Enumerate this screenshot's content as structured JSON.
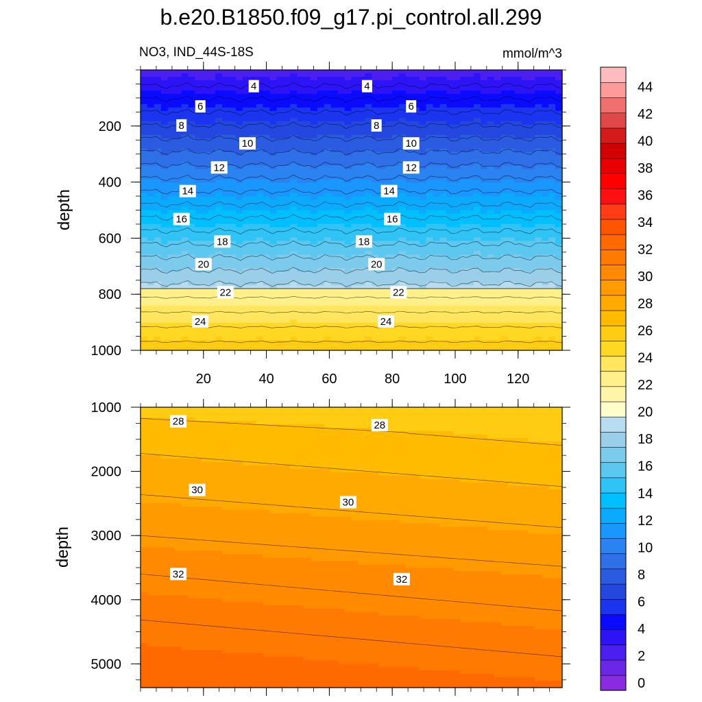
{
  "chart_data": {
    "type": "heatmap",
    "title": "b.e20.B1850.f09_g17.pi_control.all.299",
    "subtitle_left": "NO3, IND_44S-18S",
    "subtitle_right": "mmol/m^3",
    "ylabel": "depth",
    "colorbar": {
      "levels": [
        0,
        2,
        4,
        6,
        8,
        10,
        12,
        14,
        16,
        18,
        20,
        22,
        24,
        26,
        28,
        30,
        32,
        34,
        36,
        38,
        40,
        42,
        44
      ],
      "label_values": [
        "0",
        "2",
        "4",
        "6",
        "8",
        "10",
        "12",
        "14",
        "16",
        "18",
        "20",
        "22",
        "24",
        "26",
        "28",
        "30",
        "32",
        "34",
        "36",
        "38",
        "40",
        "42",
        "44"
      ],
      "colors": [
        "#8a2be2",
        "#6a28e6",
        "#4b1ff0",
        "#2d14f6",
        "#0a0aff",
        "#1b34f0",
        "#2447e0",
        "#2b5be0",
        "#2f6fe8",
        "#2a83f0",
        "#1a96ff",
        "#0aabff",
        "#00bfff",
        "#30c4f6",
        "#5cc8f0",
        "#7ccbec",
        "#9bcfe9",
        "#b8ddf0",
        "#fffccc",
        "#fff5a8",
        "#fff08a",
        "#ffe65e",
        "#ffd824",
        "#ffcc14",
        "#ffbb00",
        "#ffaa00",
        "#ff9a00",
        "#ff8a00",
        "#ff7a00",
        "#ff6a00",
        "#ff5500",
        "#ff3c14",
        "#ff1010",
        "#ff0000",
        "#e80000",
        "#d20000",
        "#d41a1a",
        "#e04848",
        "#f07070",
        "#ff9a9a",
        "#ffbcbc"
      ]
    },
    "panels": [
      {
        "name": "upper",
        "ylim": [
          1000,
          0
        ],
        "xlim": [
          0,
          134
        ],
        "xticks": [
          20,
          40,
          60,
          80,
          100,
          120
        ],
        "xtick_labels": [
          "20",
          "40",
          "60",
          "80",
          "100",
          "120"
        ],
        "yticks": [
          200,
          400,
          600,
          800,
          1000
        ],
        "ytick_labels": [
          "200",
          "400",
          "600",
          "800",
          "1000"
        ],
        "contour_labels": [
          {
            "text": "4",
            "x": 36,
            "y": 58
          },
          {
            "text": "4",
            "x": 72,
            "y": 58
          },
          {
            "text": "6",
            "x": 19,
            "y": 130
          },
          {
            "text": "6",
            "x": 86,
            "y": 130
          },
          {
            "text": "8",
            "x": 13,
            "y": 198
          },
          {
            "text": "8",
            "x": 75,
            "y": 198
          },
          {
            "text": "10",
            "x": 34,
            "y": 262
          },
          {
            "text": "10",
            "x": 86,
            "y": 262
          },
          {
            "text": "12",
            "x": 25,
            "y": 348
          },
          {
            "text": "12",
            "x": 86,
            "y": 348
          },
          {
            "text": "14",
            "x": 15,
            "y": 432
          },
          {
            "text": "14",
            "x": 79,
            "y": 432
          },
          {
            "text": "16",
            "x": 13,
            "y": 532
          },
          {
            "text": "16",
            "x": 80,
            "y": 532
          },
          {
            "text": "18",
            "x": 26,
            "y": 612
          },
          {
            "text": "18",
            "x": 71,
            "y": 612
          },
          {
            "text": "20",
            "x": 20,
            "y": 693
          },
          {
            "text": "20",
            "x": 75,
            "y": 693
          },
          {
            "text": "22",
            "x": 27,
            "y": 793
          },
          {
            "text": "22",
            "x": 82,
            "y": 793
          },
          {
            "text": "24",
            "x": 19,
            "y": 897
          },
          {
            "text": "24",
            "x": 78,
            "y": 897
          }
        ]
      },
      {
        "name": "lower",
        "ylim": [
          5370,
          1000
        ],
        "xlim": [
          0,
          134
        ],
        "yticks": [
          1000,
          2000,
          3000,
          4000,
          5000
        ],
        "ytick_labels": [
          "1000",
          "2000",
          "3000",
          "4000",
          "5000"
        ],
        "contour_labels": [
          {
            "text": "28",
            "x": 12,
            "y": 1220
          },
          {
            "text": "28",
            "x": 76,
            "y": 1280
          },
          {
            "text": "30",
            "x": 18,
            "y": 2290
          },
          {
            "text": "30",
            "x": 66,
            "y": 2480
          },
          {
            "text": "32",
            "x": 12,
            "y": 3600
          },
          {
            "text": "32",
            "x": 83,
            "y": 3680
          }
        ]
      }
    ]
  }
}
